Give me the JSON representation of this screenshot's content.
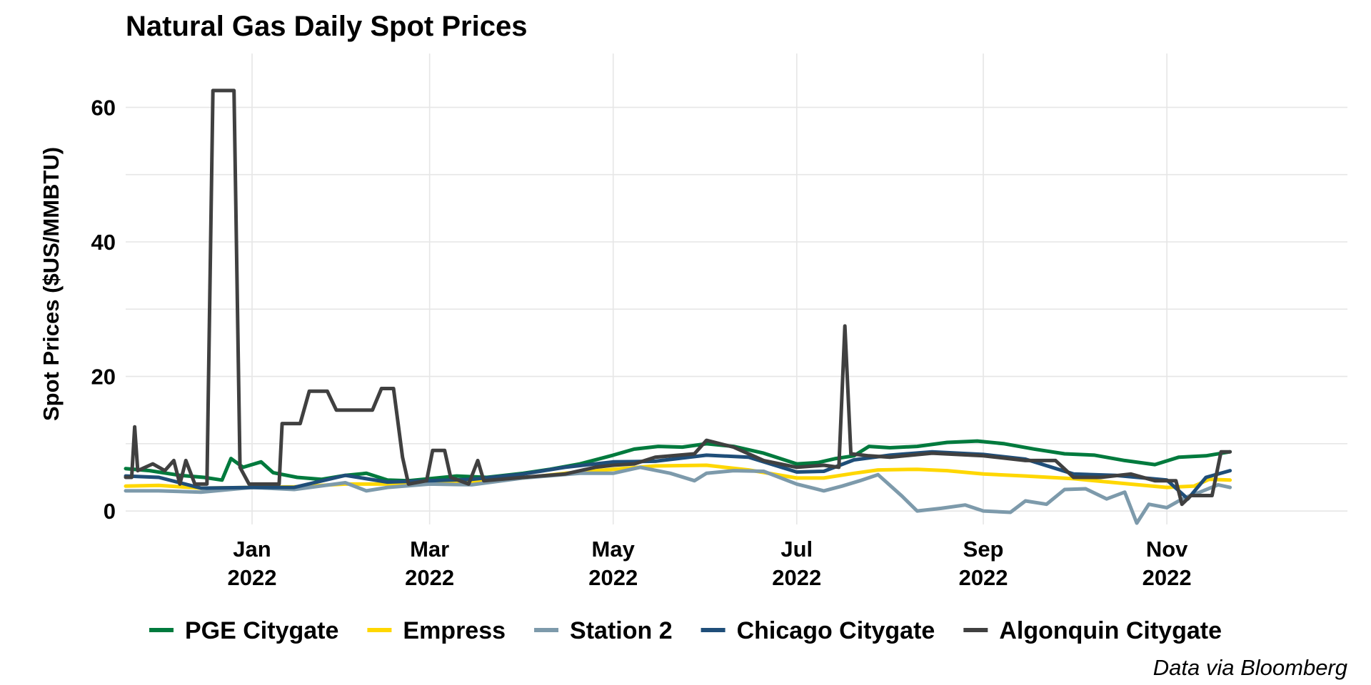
{
  "chart_data": {
    "type": "line",
    "title": "Natural Gas Daily Spot Prices",
    "ylabel": "Spot Prices ($US/MMBTU)",
    "xlabel": "",
    "caption": "Data via Bloomberg",
    "grid": true,
    "legend_position": "bottom",
    "xlim": [
      "2021-11-20",
      "2022-12-31"
    ],
    "ylim": [
      -2,
      68
    ],
    "yticks": [
      0,
      20,
      40,
      60
    ],
    "xticks": [
      {
        "date": "2022-01-01",
        "month": "Jan",
        "year": "2022"
      },
      {
        "date": "2022-03-01",
        "month": "Mar",
        "year": "2022"
      },
      {
        "date": "2022-05-01",
        "month": "May",
        "year": "2022"
      },
      {
        "date": "2022-07-01",
        "month": "Jul",
        "year": "2022"
      },
      {
        "date": "2022-09-01",
        "month": "Sep",
        "year": "2022"
      },
      {
        "date": "2022-11-01",
        "month": "Nov",
        "year": "2022"
      }
    ],
    "series": [
      {
        "name": "PGE Citygate",
        "color": "#007a3d",
        "points": [
          [
            "2021-11-20",
            6.3
          ],
          [
            "2021-11-28",
            6.0
          ],
          [
            "2021-12-08",
            5.3
          ],
          [
            "2021-12-16",
            5.0
          ],
          [
            "2021-12-22",
            4.6
          ],
          [
            "2021-12-25",
            7.8
          ],
          [
            "2021-12-29",
            6.5
          ],
          [
            "2022-01-04",
            7.3
          ],
          [
            "2022-01-08",
            5.7
          ],
          [
            "2022-01-16",
            5.0
          ],
          [
            "2022-01-24",
            4.7
          ],
          [
            "2022-02-01",
            5.3
          ],
          [
            "2022-02-08",
            5.6
          ],
          [
            "2022-02-15",
            4.6
          ],
          [
            "2022-02-22",
            4.5
          ],
          [
            "2022-03-01",
            4.8
          ],
          [
            "2022-03-10",
            5.2
          ],
          [
            "2022-03-20",
            5.0
          ],
          [
            "2022-04-01",
            5.6
          ],
          [
            "2022-04-10",
            6.2
          ],
          [
            "2022-04-20",
            7.0
          ],
          [
            "2022-05-01",
            8.3
          ],
          [
            "2022-05-08",
            9.2
          ],
          [
            "2022-05-16",
            9.6
          ],
          [
            "2022-05-24",
            9.5
          ],
          [
            "2022-06-01",
            10.0
          ],
          [
            "2022-06-10",
            9.6
          ],
          [
            "2022-06-20",
            8.6
          ],
          [
            "2022-07-01",
            7.0
          ],
          [
            "2022-07-08",
            7.2
          ],
          [
            "2022-07-14",
            7.8
          ],
          [
            "2022-07-20",
            8.2
          ],
          [
            "2022-07-25",
            9.6
          ],
          [
            "2022-08-01",
            9.4
          ],
          [
            "2022-08-10",
            9.6
          ],
          [
            "2022-08-20",
            10.2
          ],
          [
            "2022-08-30",
            10.4
          ],
          [
            "2022-09-08",
            10.0
          ],
          [
            "2022-09-18",
            9.2
          ],
          [
            "2022-09-28",
            8.5
          ],
          [
            "2022-10-08",
            8.3
          ],
          [
            "2022-10-18",
            7.5
          ],
          [
            "2022-10-28",
            6.9
          ],
          [
            "2022-11-05",
            8.0
          ],
          [
            "2022-11-14",
            8.2
          ],
          [
            "2022-11-22",
            8.8
          ]
        ]
      },
      {
        "name": "Empress",
        "color": "#ffd700",
        "points": [
          [
            "2021-11-20",
            3.7
          ],
          [
            "2021-12-01",
            3.8
          ],
          [
            "2021-12-15",
            3.4
          ],
          [
            "2022-01-01",
            3.5
          ],
          [
            "2022-01-15",
            3.6
          ],
          [
            "2022-02-01",
            4.0
          ],
          [
            "2022-02-15",
            4.0
          ],
          [
            "2022-03-01",
            4.3
          ],
          [
            "2022-03-15",
            4.4
          ],
          [
            "2022-04-01",
            4.9
          ],
          [
            "2022-04-15",
            5.6
          ],
          [
            "2022-05-01",
            6.2
          ],
          [
            "2022-05-15",
            6.7
          ],
          [
            "2022-06-01",
            6.8
          ],
          [
            "2022-06-15",
            6.1
          ],
          [
            "2022-07-01",
            4.9
          ],
          [
            "2022-07-10",
            4.9
          ],
          [
            "2022-07-20",
            5.6
          ],
          [
            "2022-07-28",
            6.1
          ],
          [
            "2022-08-10",
            6.2
          ],
          [
            "2022-08-20",
            6.0
          ],
          [
            "2022-09-01",
            5.5
          ],
          [
            "2022-09-15",
            5.2
          ],
          [
            "2022-10-01",
            4.8
          ],
          [
            "2022-10-15",
            4.2
          ],
          [
            "2022-11-01",
            3.5
          ],
          [
            "2022-11-10",
            3.7
          ],
          [
            "2022-11-15",
            4.7
          ],
          [
            "2022-11-22",
            4.6
          ]
        ]
      },
      {
        "name": "Station 2",
        "color": "#7d9aab",
        "points": [
          [
            "2021-11-20",
            3.0
          ],
          [
            "2021-12-01",
            3.0
          ],
          [
            "2021-12-15",
            2.8
          ],
          [
            "2022-01-01",
            3.5
          ],
          [
            "2022-01-15",
            3.2
          ],
          [
            "2022-02-01",
            4.2
          ],
          [
            "2022-02-08",
            3.0
          ],
          [
            "2022-02-15",
            3.5
          ],
          [
            "2022-03-01",
            4.0
          ],
          [
            "2022-03-15",
            3.9
          ],
          [
            "2022-04-01",
            4.9
          ],
          [
            "2022-04-20",
            5.6
          ],
          [
            "2022-05-01",
            5.6
          ],
          [
            "2022-05-10",
            6.5
          ],
          [
            "2022-05-20",
            5.6
          ],
          [
            "2022-05-28",
            4.5
          ],
          [
            "2022-06-01",
            5.6
          ],
          [
            "2022-06-10",
            6.0
          ],
          [
            "2022-06-20",
            5.9
          ],
          [
            "2022-07-01",
            4.0
          ],
          [
            "2022-07-10",
            3.0
          ],
          [
            "2022-07-16",
            3.7
          ],
          [
            "2022-07-22",
            4.5
          ],
          [
            "2022-07-28",
            5.4
          ],
          [
            "2022-08-05",
            2.2
          ],
          [
            "2022-08-10",
            0.0
          ],
          [
            "2022-08-18",
            0.4
          ],
          [
            "2022-08-26",
            0.9
          ],
          [
            "2022-09-01",
            0.0
          ],
          [
            "2022-09-10",
            -0.2
          ],
          [
            "2022-09-15",
            1.5
          ],
          [
            "2022-09-22",
            1.0
          ],
          [
            "2022-09-28",
            3.2
          ],
          [
            "2022-10-05",
            3.3
          ],
          [
            "2022-10-12",
            1.8
          ],
          [
            "2022-10-18",
            2.8
          ],
          [
            "2022-10-22",
            -1.8
          ],
          [
            "2022-10-26",
            1.0
          ],
          [
            "2022-11-01",
            0.5
          ],
          [
            "2022-11-07",
            2.0
          ],
          [
            "2022-11-12",
            2.8
          ],
          [
            "2022-11-18",
            3.9
          ],
          [
            "2022-11-22",
            3.5
          ]
        ]
      },
      {
        "name": "Chicago Citygate",
        "color": "#1f4e79",
        "points": [
          [
            "2021-11-20",
            5.2
          ],
          [
            "2021-12-01",
            5.0
          ],
          [
            "2021-12-15",
            3.4
          ],
          [
            "2022-01-01",
            3.5
          ],
          [
            "2022-01-15",
            3.5
          ],
          [
            "2022-02-01",
            5.3
          ],
          [
            "2022-02-15",
            4.3
          ],
          [
            "2022-03-01",
            4.5
          ],
          [
            "2022-03-15",
            4.7
          ],
          [
            "2022-04-01",
            5.5
          ],
          [
            "2022-04-15",
            6.5
          ],
          [
            "2022-05-01",
            7.3
          ],
          [
            "2022-05-15",
            7.4
          ],
          [
            "2022-06-01",
            8.3
          ],
          [
            "2022-06-15",
            8.0
          ],
          [
            "2022-07-01",
            5.8
          ],
          [
            "2022-07-10",
            5.9
          ],
          [
            "2022-07-20",
            7.6
          ],
          [
            "2022-08-01",
            8.3
          ],
          [
            "2022-08-15",
            8.8
          ],
          [
            "2022-09-01",
            8.4
          ],
          [
            "2022-09-15",
            7.7
          ],
          [
            "2022-10-01",
            5.5
          ],
          [
            "2022-10-15",
            5.3
          ],
          [
            "2022-11-01",
            4.6
          ],
          [
            "2022-11-08",
            1.8
          ],
          [
            "2022-11-14",
            5.0
          ],
          [
            "2022-11-22",
            6.0
          ]
        ]
      },
      {
        "name": "Algonquin Citygate",
        "color": "#404040",
        "points": [
          [
            "2021-11-20",
            5.0
          ],
          [
            "2021-11-22",
            5.0
          ],
          [
            "2021-11-23",
            12.5
          ],
          [
            "2021-11-24",
            6.0
          ],
          [
            "2021-11-29",
            7.0
          ],
          [
            "2021-12-03",
            6.0
          ],
          [
            "2021-12-06",
            7.5
          ],
          [
            "2021-12-08",
            4.0
          ],
          [
            "2021-12-10",
            7.5
          ],
          [
            "2021-12-13",
            4.0
          ],
          [
            "2021-12-17",
            4.0
          ],
          [
            "2021-12-19",
            62.5
          ],
          [
            "2021-12-26",
            62.5
          ],
          [
            "2021-12-28",
            6.5
          ],
          [
            "2021-12-31",
            4.0
          ],
          [
            "2022-01-10",
            4.0
          ],
          [
            "2022-01-11",
            13.0
          ],
          [
            "2022-01-17",
            13.0
          ],
          [
            "2022-01-20",
            17.8
          ],
          [
            "2022-01-26",
            17.8
          ],
          [
            "2022-01-29",
            15.0
          ],
          [
            "2022-02-10",
            15.0
          ],
          [
            "2022-02-13",
            18.2
          ],
          [
            "2022-02-17",
            18.2
          ],
          [
            "2022-02-20",
            8.0
          ],
          [
            "2022-02-22",
            4.0
          ],
          [
            "2022-02-28",
            4.5
          ],
          [
            "2022-03-02",
            9.0
          ],
          [
            "2022-03-06",
            9.0
          ],
          [
            "2022-03-08",
            5.0
          ],
          [
            "2022-03-14",
            4.0
          ],
          [
            "2022-03-17",
            7.5
          ],
          [
            "2022-03-19",
            4.5
          ],
          [
            "2022-04-01",
            5.0
          ],
          [
            "2022-04-15",
            5.5
          ],
          [
            "2022-04-25",
            6.5
          ],
          [
            "2022-05-01",
            6.8
          ],
          [
            "2022-05-08",
            7.0
          ],
          [
            "2022-05-15",
            8.0
          ],
          [
            "2022-05-28",
            8.5
          ],
          [
            "2022-06-01",
            10.5
          ],
          [
            "2022-06-10",
            9.5
          ],
          [
            "2022-06-20",
            7.5
          ],
          [
            "2022-07-01",
            6.5
          ],
          [
            "2022-07-10",
            6.8
          ],
          [
            "2022-07-15",
            6.5
          ],
          [
            "2022-07-17",
            27.5
          ],
          [
            "2022-07-19",
            8.5
          ],
          [
            "2022-07-25",
            8.2
          ],
          [
            "2022-08-01",
            8.0
          ],
          [
            "2022-08-15",
            8.6
          ],
          [
            "2022-09-01",
            8.2
          ],
          [
            "2022-09-15",
            7.5
          ],
          [
            "2022-09-25",
            7.5
          ],
          [
            "2022-10-01",
            5.0
          ],
          [
            "2022-10-10",
            5.0
          ],
          [
            "2022-10-20",
            5.5
          ],
          [
            "2022-10-28",
            4.5
          ],
          [
            "2022-11-04",
            4.5
          ],
          [
            "2022-11-06",
            1.0
          ],
          [
            "2022-11-09",
            2.3
          ],
          [
            "2022-11-16",
            2.3
          ],
          [
            "2022-11-19",
            8.8
          ],
          [
            "2022-11-22",
            8.8
          ]
        ]
      }
    ]
  }
}
